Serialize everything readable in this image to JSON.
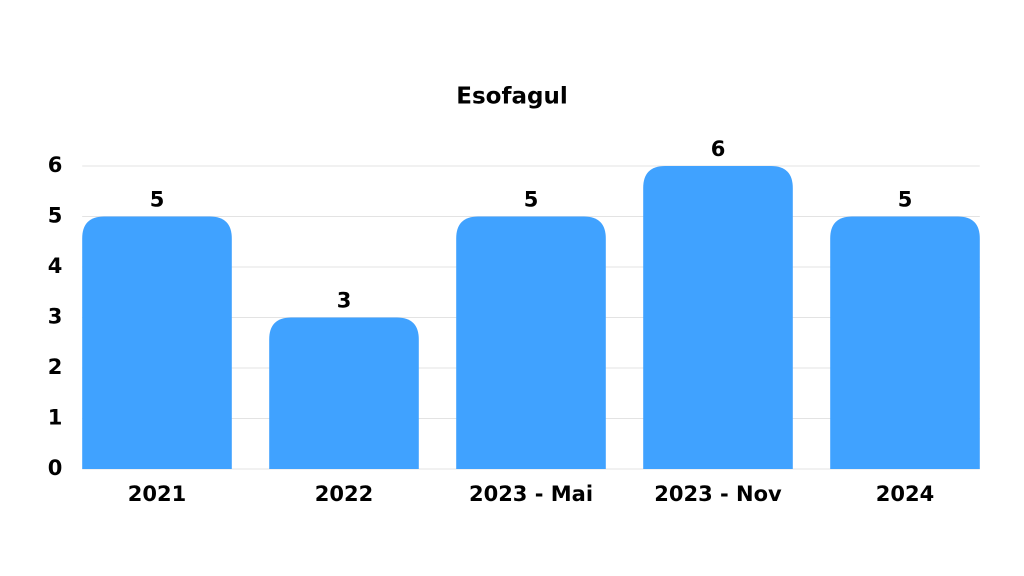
{
  "chart_data": {
    "type": "bar",
    "title": "Esofagul",
    "categories": [
      "2021",
      "2022",
      "2023 - Mai",
      "2023 - Nov",
      "2024"
    ],
    "values": [
      5,
      3,
      5,
      6,
      5
    ],
    "color": "#40a2ff",
    "ylim": [
      0,
      6
    ],
    "yticks": [
      0,
      1,
      2,
      3,
      4,
      5,
      6
    ],
    "grid": true
  }
}
